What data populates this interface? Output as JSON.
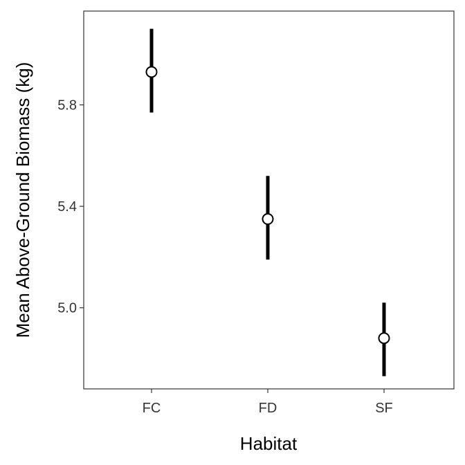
{
  "chart_data": {
    "type": "scatter",
    "title": "",
    "xlabel": "Habitat",
    "ylabel": "Mean Above-Ground Biomass (kg)",
    "categories": [
      "FC",
      "FD",
      "SF"
    ],
    "series": [
      {
        "values": [
          5.93,
          5.35,
          4.88
        ],
        "lower": [
          5.77,
          5.19,
          4.73
        ],
        "upper": [
          6.1,
          5.52,
          5.02
        ]
      }
    ],
    "ylim": [
      4.68,
      6.17
    ],
    "yticks": [
      5.0,
      5.4,
      5.8
    ],
    "ytick_labels": [
      "5.0",
      "5.4",
      "5.8"
    ],
    "grid": false,
    "legend": "none"
  }
}
